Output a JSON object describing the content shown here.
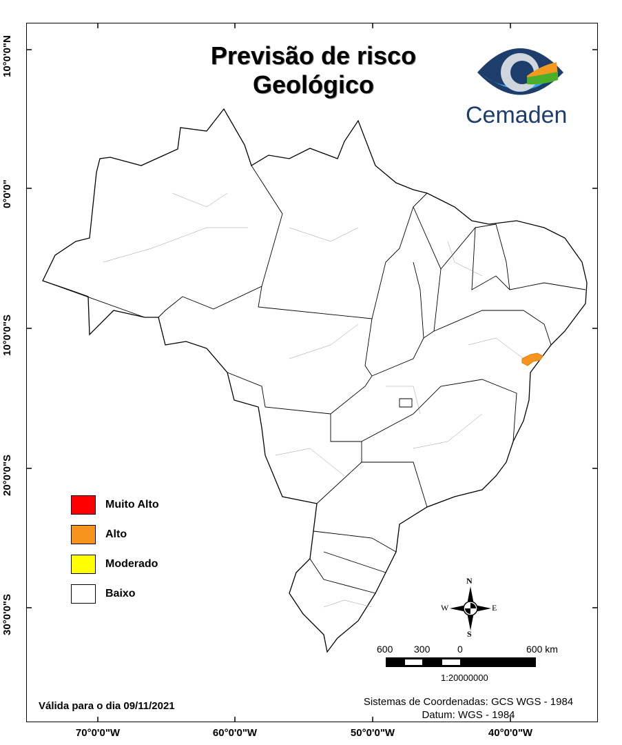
{
  "title": {
    "line1": "Previsão de risco",
    "line2": "Geológico"
  },
  "logo": {
    "text": "Cemaden",
    "colors": {
      "dark_blue": "#1d3d6b",
      "light_blue": "#3aa7e6",
      "green": "#4caf2a",
      "orange": "#f39a1e"
    }
  },
  "axes": {
    "lat_labels": [
      "10°0'0\"N",
      "0°0'0\"",
      "10°0'0\"S",
      "20°0'0\"S",
      "30°0'0\"S"
    ],
    "lon_labels": [
      "70°0'0\"W",
      "60°0'0\"W",
      "50°0'0\"W",
      "40°0'0\"W"
    ]
  },
  "legend": {
    "items": [
      {
        "label": "Muito Alto",
        "color": "#ff0000"
      },
      {
        "label": "Alto",
        "color": "#f7941d"
      },
      {
        "label": "Moderado",
        "color": "#ffff00"
      },
      {
        "label": "Baixo",
        "color": "#ffffff"
      }
    ]
  },
  "compass": {
    "n": "N",
    "s": "S",
    "e": "E",
    "w": "W"
  },
  "scale": {
    "labels": [
      "600",
      "300",
      "0",
      "600 km"
    ],
    "ratio": "1:20000000"
  },
  "footer": {
    "valid": "Válida para o dia 09/11/2021",
    "crs": "Sistemas de Coordenadas: GCS WGS - 1984",
    "datum": "Datum: WGS - 1984"
  },
  "risk_areas": [
    {
      "level": "Alto",
      "region": "northeast coast (Sergipe/Bahia)"
    }
  ]
}
